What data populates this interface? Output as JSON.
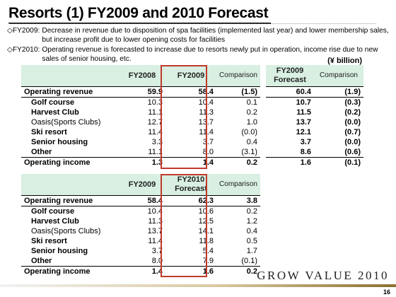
{
  "title": "Resorts (1) FY2009 and 2010 Forecast",
  "bullets": [
    {
      "label": "◇FY2009:",
      "text": "Decrease in revenue due to disposition of spa facilities (implemented last year) and lower membership sales, but increase profit due to lower opening costs for facilities"
    },
    {
      "label": "◇FY2010:",
      "text": "Operating revenue is forecasted to increase due to resorts newly put in operation, income rise due to new sales of senior housing, etc."
    }
  ],
  "unit": "(¥ billion)",
  "table_fy2009": {
    "headers": [
      "FY2008",
      "FY2009",
      "Comparison"
    ],
    "rows": [
      {
        "label": "Operating revenue",
        "values": [
          "59.9",
          "58.4",
          "(1.5)"
        ]
      },
      {
        "label": "Golf course",
        "values": [
          "10.3",
          "10.4",
          "0.1"
        ]
      },
      {
        "label": "Harvest Club",
        "values": [
          "11.1",
          "11.3",
          "0.2"
        ]
      },
      {
        "label": "Oasis(Sports Clubs)",
        "values": [
          "12.7",
          "13.7",
          "1.0"
        ]
      },
      {
        "label": "Ski resort",
        "values": [
          "11.4",
          "11.4",
          "(0.0)"
        ]
      },
      {
        "label": "Senior housing",
        "values": [
          "3.3",
          "3.7",
          "0.4"
        ]
      },
      {
        "label": "Other",
        "values": [
          "11.1",
          "8.0",
          "(3.1)"
        ]
      },
      {
        "label": "Operating income",
        "values": [
          "1.3",
          "1.4",
          "0.2"
        ]
      }
    ]
  },
  "table_forecast": {
    "headers": [
      "FY2009 Forecast",
      "Comparison"
    ],
    "rows": [
      [
        "60.4",
        "(1.9)"
      ],
      [
        "10.7",
        "(0.3)"
      ],
      [
        "11.5",
        "(0.2)"
      ],
      [
        "13.7",
        "(0.0)"
      ],
      [
        "12.1",
        "(0.7)"
      ],
      [
        "3.7",
        "(0.0)"
      ],
      [
        "8.6",
        "(0.6)"
      ],
      [
        "1.6",
        "(0.1)"
      ]
    ]
  },
  "table_fy2010": {
    "headers": [
      "FY2009",
      "FY2010 Forecast",
      "Comparison"
    ],
    "rows": [
      {
        "label": "Operating revenue",
        "values": [
          "58.4",
          "62.3",
          "3.8"
        ]
      },
      {
        "label": "Golf course",
        "values": [
          "10.4",
          "10.6",
          "0.2"
        ]
      },
      {
        "label": "Harvest Club",
        "values": [
          "11.3",
          "12.5",
          "1.2"
        ]
      },
      {
        "label": "Oasis(Sports Clubs)",
        "values": [
          "13.7",
          "14.1",
          "0.4"
        ]
      },
      {
        "label": "Ski resort",
        "values": [
          "11.4",
          "11.8",
          "0.5"
        ]
      },
      {
        "label": "Senior housing",
        "values": [
          "3.7",
          "5.4",
          "1.7"
        ]
      },
      {
        "label": "Other",
        "values": [
          "8.0",
          "7.9",
          "(0.1)"
        ]
      },
      {
        "label": "Operating income",
        "values": [
          "1.4",
          "1.6",
          "0.2"
        ]
      }
    ]
  },
  "highlight_color": "#c0392b",
  "header_fill": "#d8efe2",
  "slogan": "GROW VALUE 2010",
  "page_number": "16"
}
